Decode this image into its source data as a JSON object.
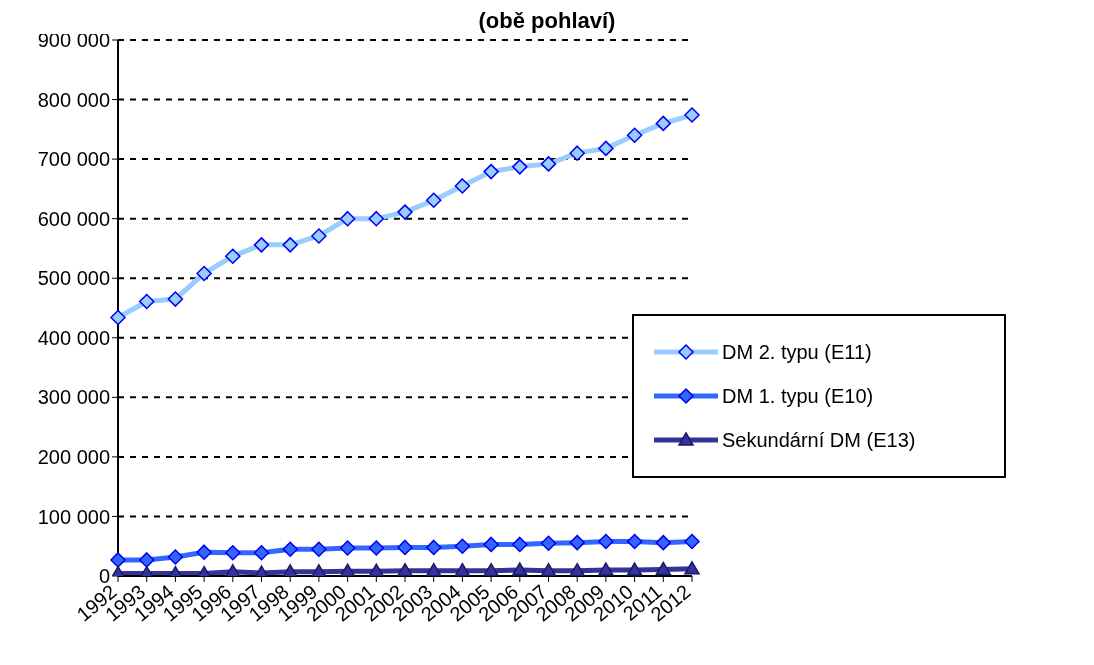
{
  "chart_data": {
    "type": "line",
    "title": "(obě pohlaví)",
    "categories": [
      "1992",
      "1993",
      "1994",
      "1995",
      "1996",
      "1997",
      "1998",
      "1999",
      "2000",
      "2001",
      "2002",
      "2003",
      "2004",
      "2005",
      "2006",
      "2007",
      "2008",
      "2009",
      "2010",
      "2011",
      "2012"
    ],
    "series": [
      {
        "name": "DM 2. typu (E11)",
        "color": "#99ccff",
        "marker": "diamond",
        "values": [
          434000,
          461000,
          465000,
          508000,
          537000,
          556000,
          556000,
          571000,
          600000,
          600000,
          611000,
          631000,
          655000,
          679000,
          687000,
          692000,
          710000,
          718000,
          740000,
          760000,
          774000
        ]
      },
      {
        "name": "DM 1. typu (E10)",
        "color": "#3366ff",
        "marker": "diamond",
        "values": [
          27000,
          27000,
          32000,
          40000,
          39000,
          39000,
          45000,
          45000,
          47000,
          47000,
          48000,
          48000,
          50000,
          53000,
          53000,
          55000,
          56000,
          58000,
          58000,
          56000,
          58000
        ]
      },
      {
        "name": "Sekundární DM (E13)",
        "color": "#333399",
        "marker": "triangle",
        "values": [
          4000,
          4000,
          4000,
          4000,
          7000,
          5000,
          7000,
          7000,
          8000,
          8000,
          9000,
          9000,
          9000,
          9000,
          10000,
          9000,
          9000,
          10000,
          10000,
          11000,
          12000
        ]
      }
    ],
    "ylim": [
      0,
      900000
    ],
    "yticks": [
      0,
      100000,
      200000,
      300000,
      400000,
      500000,
      600000,
      700000,
      800000,
      900000
    ],
    "grid": "y",
    "legend": "right",
    "line_style": "solid"
  }
}
